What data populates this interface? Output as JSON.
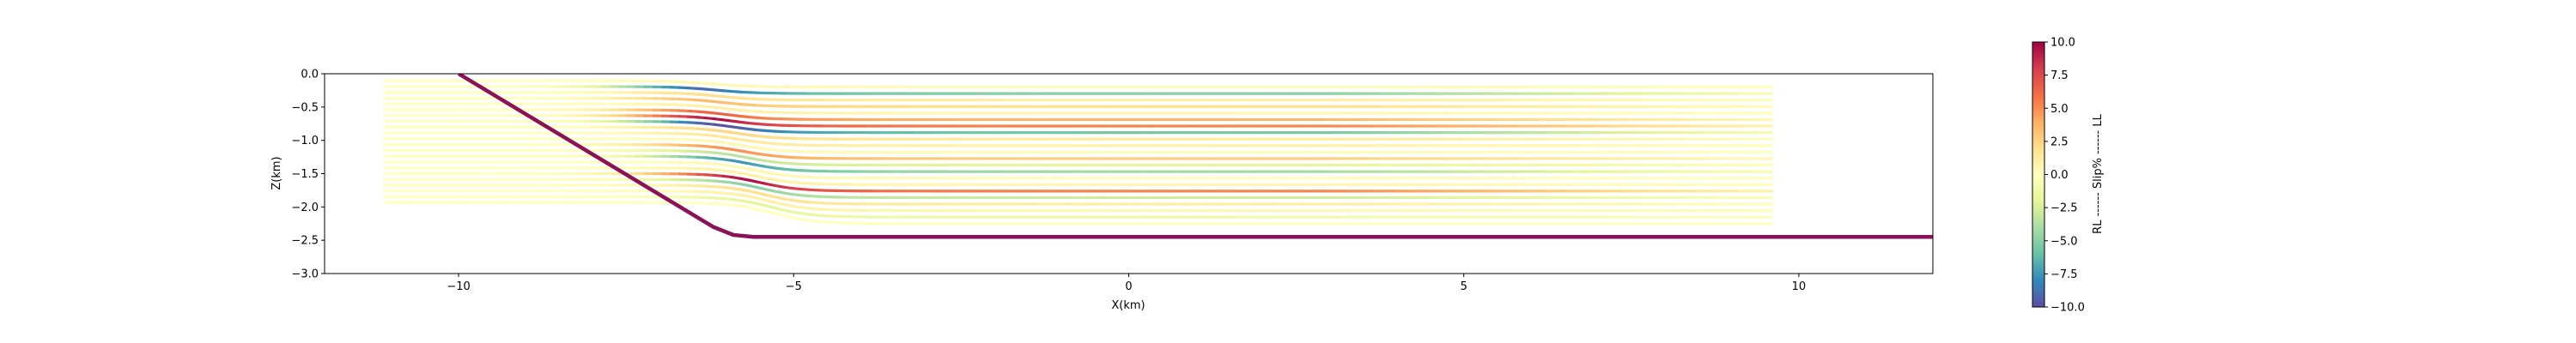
{
  "chart_data": {
    "type": "line",
    "title": "",
    "xlabel": "X(km)",
    "ylabel": "Z(km)",
    "xlim": [
      -12,
      12
    ],
    "ylim": [
      -3.0,
      0.0
    ],
    "xticks": [
      "−10",
      "−5",
      "0",
      "5",
      "10"
    ],
    "xtick_values": [
      -10,
      -5,
      0,
      5,
      10
    ],
    "yticks": [
      "0.0",
      "−0.5",
      "−1.0",
      "−1.5",
      "−2.0",
      "−2.5",
      "−3.0"
    ],
    "ytick_values": [
      0.0,
      -0.5,
      -1.0,
      -1.5,
      -2.0,
      -2.5,
      -3.0
    ],
    "grid": false,
    "fault_color": "#8b1158",
    "fault": {
      "x": [
        -10.0,
        -6.2,
        -5.9,
        -5.6,
        -5.3,
        12.0
      ],
      "z": [
        0.0,
        -2.3,
        -2.42,
        -2.45,
        -2.45,
        -2.45
      ]
    },
    "horizons": {
      "x_start": -11.1,
      "x_end": 9.6,
      "z_top": -0.2,
      "z_bottom": -2.25,
      "count": 22,
      "bend_center": -6.2,
      "footwall_offset": 0.35,
      "slip_profile": [
        0.5,
        -9.0,
        2.0,
        3.5,
        1.0,
        6.5,
        9.5,
        -10.0,
        2.5,
        1.5,
        0.5,
        5.0,
        -3.5,
        -7.5,
        0.5,
        1.0,
        9.5,
        -5.0,
        2.0,
        1.0,
        -2.0,
        0.0
      ]
    },
    "colorbar": {
      "label": "RL ------ Slip% ------ LL",
      "min": -10.0,
      "max": 10.0,
      "ticks": [
        "10.0",
        "7.5",
        "5.0",
        "2.5",
        "0.0",
        "−2.5",
        "−5.0",
        "−7.5",
        "−10.0"
      ],
      "tick_values": [
        10.0,
        7.5,
        5.0,
        2.5,
        0.0,
        -2.5,
        -5.0,
        -7.5,
        -10.0
      ],
      "colormap": "Spectral",
      "colors": [
        "#9e0142",
        "#d53e4f",
        "#f46d43",
        "#fdae61",
        "#fee08b",
        "#ffffbf",
        "#e6f598",
        "#abdda4",
        "#66c2a5",
        "#3288bd",
        "#5e4fa2"
      ]
    }
  }
}
